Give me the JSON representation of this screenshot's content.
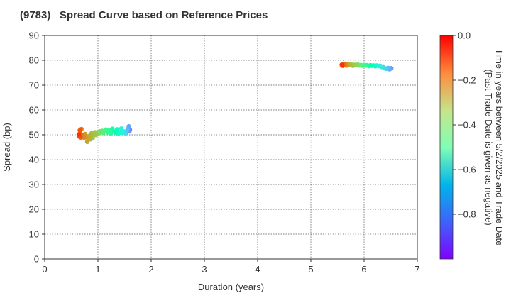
{
  "chart_data": {
    "type": "scatter",
    "title": "(9783)   Spread Curve based on Reference Prices",
    "xlabel": "Duration (years)",
    "ylabel": "Spread (bp)",
    "xlim": [
      0,
      7
    ],
    "ylim": [
      0,
      90
    ],
    "x_ticks": [
      "0",
      "1",
      "2",
      "3",
      "4",
      "5",
      "6",
      "7"
    ],
    "y_ticks": [
      "0",
      "10",
      "20",
      "30",
      "40",
      "50",
      "60",
      "70",
      "80",
      "90"
    ],
    "grid": true,
    "colorbar": {
      "label_line1": "Time in years between 5/2/2025 and Trade Date",
      "label_line2": "(Past Trade Date is given as negative)",
      "range": [
        -1.0,
        0.0
      ],
      "ticks": [
        "0.0",
        "−0.2",
        "−0.4",
        "−0.6",
        "−0.8"
      ],
      "colormap": "rainbow"
    },
    "series": [
      {
        "points": [
          [
            0.64,
            50.2,
            -0.01
          ],
          [
            0.65,
            49.3,
            -0.02
          ],
          [
            0.66,
            51.8,
            -0.03
          ],
          [
            0.67,
            50.5,
            -0.04
          ],
          [
            0.68,
            48.9,
            -0.05
          ],
          [
            0.69,
            52.3,
            -0.06
          ],
          [
            0.7,
            50.0,
            -0.07
          ],
          [
            0.72,
            49.6,
            -0.08
          ],
          [
            0.74,
            48.8,
            -0.09
          ],
          [
            0.76,
            50.3,
            -0.1
          ],
          [
            0.78,
            49.0,
            -0.11
          ],
          [
            0.8,
            47.2,
            -0.12
          ],
          [
            0.82,
            48.4,
            -0.13
          ],
          [
            0.84,
            49.6,
            -0.14
          ],
          [
            0.86,
            48.2,
            -0.15
          ],
          [
            0.88,
            50.6,
            -0.16
          ],
          [
            0.9,
            48.6,
            -0.17
          ],
          [
            0.92,
            49.8,
            -0.18
          ],
          [
            0.94,
            51.0,
            -0.19
          ],
          [
            0.96,
            49.9,
            -0.2
          ],
          [
            0.98,
            50.2,
            -0.22
          ],
          [
            1.0,
            51.2,
            -0.24
          ],
          [
            1.02,
            50.6,
            -0.26
          ],
          [
            1.04,
            51.4,
            -0.28
          ],
          [
            1.06,
            51.0,
            -0.3
          ],
          [
            1.08,
            51.6,
            -0.32
          ],
          [
            1.1,
            50.8,
            -0.34
          ],
          [
            1.12,
            51.5,
            -0.36
          ],
          [
            1.15,
            52.1,
            -0.38
          ],
          [
            1.18,
            51.0,
            -0.4
          ],
          [
            1.21,
            51.7,
            -0.42
          ],
          [
            1.24,
            50.5,
            -0.44
          ],
          [
            1.27,
            52.4,
            -0.46
          ],
          [
            1.3,
            51.3,
            -0.49
          ],
          [
            1.33,
            51.0,
            -0.52
          ],
          [
            1.36,
            52.2,
            -0.55
          ],
          [
            1.38,
            50.4,
            -0.58
          ],
          [
            1.4,
            51.6,
            -0.61
          ],
          [
            1.42,
            50.9,
            -0.64
          ],
          [
            1.44,
            52.5,
            -0.67
          ],
          [
            1.46,
            51.5,
            -0.7
          ],
          [
            1.48,
            50.8,
            -0.73
          ],
          [
            1.5,
            51.3,
            -0.76
          ],
          [
            1.52,
            50.6,
            -0.79
          ],
          [
            1.54,
            51.5,
            -0.82
          ],
          [
            1.56,
            52.3,
            -0.85
          ],
          [
            1.58,
            53.4,
            -0.88
          ],
          [
            1.59,
            51.4,
            -0.91
          ],
          [
            1.6,
            52.0,
            -0.94
          ]
        ]
      },
      {
        "points": [
          [
            5.58,
            78.2,
            -0.01
          ],
          [
            5.6,
            77.8,
            -0.03
          ],
          [
            5.62,
            78.6,
            -0.05
          ],
          [
            5.64,
            78.0,
            -0.07
          ],
          [
            5.66,
            78.4,
            -0.09
          ],
          [
            5.68,
            77.9,
            -0.11
          ],
          [
            5.7,
            78.5,
            -0.13
          ],
          [
            5.73,
            78.1,
            -0.15
          ],
          [
            5.76,
            78.3,
            -0.17
          ],
          [
            5.79,
            77.8,
            -0.19
          ],
          [
            5.82,
            78.2,
            -0.21
          ],
          [
            5.85,
            78.0,
            -0.24
          ],
          [
            5.88,
            78.3,
            -0.27
          ],
          [
            5.91,
            77.9,
            -0.3
          ],
          [
            5.94,
            78.1,
            -0.33
          ],
          [
            5.97,
            77.8,
            -0.36
          ],
          [
            6.0,
            78.1,
            -0.39
          ],
          [
            6.03,
            77.9,
            -0.42
          ],
          [
            6.06,
            78.0,
            -0.45
          ],
          [
            6.09,
            77.7,
            -0.48
          ],
          [
            6.12,
            78.0,
            -0.51
          ],
          [
            6.15,
            77.8,
            -0.54
          ],
          [
            6.18,
            77.9,
            -0.57
          ],
          [
            6.21,
            77.6,
            -0.6
          ],
          [
            6.24,
            77.9,
            -0.63
          ],
          [
            6.27,
            77.7,
            -0.66
          ],
          [
            6.3,
            77.8,
            -0.69
          ],
          [
            6.33,
            77.3,
            -0.72
          ],
          [
            6.36,
            77.5,
            -0.75
          ],
          [
            6.39,
            76.8,
            -0.78
          ],
          [
            6.42,
            76.6,
            -0.81
          ],
          [
            6.45,
            76.9,
            -0.84
          ],
          [
            6.48,
            76.4,
            -0.87
          ],
          [
            6.51,
            76.8,
            -0.9
          ]
        ]
      }
    ]
  }
}
